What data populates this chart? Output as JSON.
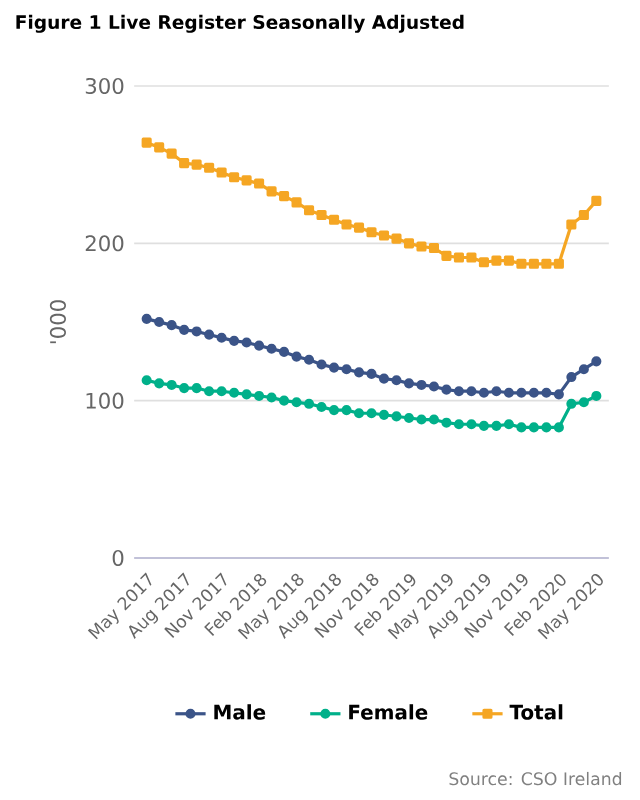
{
  "chart_data": {
    "type": "line",
    "title": "Figure 1 Live Register Seasonally Adjusted",
    "ylabel": "'000",
    "categories": [
      "May 2017",
      null,
      null,
      "Aug 2017",
      null,
      null,
      "Nov 2017",
      null,
      null,
      "Feb 2018",
      null,
      null,
      "May 2018",
      null,
      null,
      "Aug 2018",
      null,
      null,
      "Nov 2018",
      null,
      null,
      "Feb 2019",
      null,
      null,
      "May 2019",
      null,
      null,
      "Aug 2019",
      null,
      null,
      "Nov 2019",
      null,
      null,
      "Feb 2020",
      null,
      null,
      "May 2020"
    ],
    "series": [
      {
        "name": "Male",
        "color": "#3b5488",
        "marker": "circle",
        "values": [
          152,
          150,
          148,
          145,
          144,
          142,
          140,
          138,
          137,
          135,
          133,
          131,
          128,
          126,
          123,
          121,
          120,
          118,
          117,
          114,
          113,
          111,
          110,
          109,
          107,
          106,
          106,
          105,
          106,
          105,
          105,
          105,
          105,
          104,
          115,
          120,
          125
        ]
      },
      {
        "name": "Female",
        "color": "#00b08a",
        "marker": "circle",
        "values": [
          113,
          111,
          110,
          108,
          108,
          106,
          106,
          105,
          104,
          103,
          102,
          100,
          99,
          98,
          96,
          94,
          94,
          92,
          92,
          91,
          90,
          89,
          88,
          88,
          86,
          85,
          85,
          84,
          84,
          85,
          83,
          83,
          83,
          83,
          98,
          99,
          103
        ]
      },
      {
        "name": "Total",
        "color": "#f5a623",
        "marker": "square",
        "values": [
          264,
          261,
          257,
          251,
          250,
          248,
          245,
          242,
          240,
          238,
          233,
          230,
          226,
          221,
          218,
          215,
          212,
          210,
          207,
          205,
          203,
          200,
          198,
          197,
          192,
          191,
          191,
          188,
          189,
          189,
          187,
          187,
          187,
          187,
          212,
          218,
          227
        ]
      }
    ],
    "ylim": [
      0,
      300
    ],
    "yticks": [
      0,
      100,
      200,
      300
    ],
    "grid": "y",
    "legend": "bottom",
    "annotations": [
      "Source: CSO Ireland"
    ]
  }
}
